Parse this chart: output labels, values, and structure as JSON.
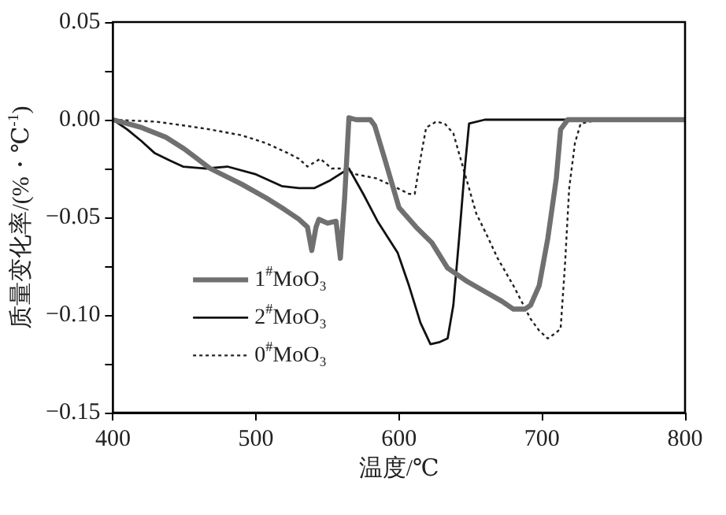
{
  "chart_data": {
    "type": "line",
    "xlabel": "温度/℃",
    "ylabel": "质量变化率/(%・℃$^{-1}$)",
    "xlim": [
      400,
      800
    ],
    "xticks": [
      400,
      500,
      600,
      700,
      800
    ],
    "ylim": [
      -0.15,
      0.05
    ],
    "yticks": [
      {
        "value": 0.05,
        "label": "0.05"
      },
      {
        "value": 0.025,
        "label": null
      },
      {
        "value": 0,
        "label": "0.00"
      },
      {
        "value": -0.025,
        "label": null
      },
      {
        "value": -0.05,
        "label": "−0.05"
      },
      {
        "value": -0.075,
        "label": null
      },
      {
        "value": -0.1,
        "label": "−0.10"
      },
      {
        "value": -0.125,
        "label": null
      },
      {
        "value": -0.15,
        "label": "−0.15"
      }
    ],
    "grid": false,
    "legend": "left",
    "marker": "none",
    "series": [
      {
        "name": "1$^{#}$MoO₃",
        "color": "#707070",
        "line_style": "solid",
        "x": [
          400,
          410,
          420,
          437,
          450,
          468,
          490,
          507,
          520,
          530,
          536,
          539,
          542,
          544,
          550,
          556,
          559,
          562,
          565,
          570,
          580,
          583,
          590,
          600,
          612,
          623,
          634,
          648,
          660,
          672,
          680,
          688,
          692,
          698,
          704,
          710,
          713,
          718,
          730,
          750,
          770,
          800
        ],
        "values": [
          0,
          -0.002,
          -0.004,
          -0.009,
          -0.015,
          -0.025,
          -0.033,
          -0.04,
          -0.046,
          -0.051,
          -0.055,
          -0.067,
          -0.055,
          -0.051,
          -0.053,
          -0.052,
          -0.071,
          -0.04,
          0.001,
          0,
          0,
          -0.003,
          -0.02,
          -0.045,
          -0.055,
          -0.063,
          -0.076,
          -0.083,
          -0.088,
          -0.093,
          -0.097,
          -0.097,
          -0.095,
          -0.085,
          -0.061,
          -0.03,
          -0.005,
          0,
          0,
          0,
          0,
          0
        ]
      },
      {
        "name": "2$^{#}$MoO₃",
        "color": "#111111",
        "line_style": "solid",
        "x": [
          400,
          410,
          420,
          429,
          440,
          449,
          465,
          480,
          500,
          518,
          530,
          541,
          552,
          565,
          575,
          585,
          599,
          607,
          615,
          622,
          628,
          634,
          638,
          642,
          646,
          649,
          660,
          700,
          750,
          800
        ],
        "values": [
          0,
          -0.005,
          -0.011,
          -0.017,
          -0.021,
          -0.024,
          -0.025,
          -0.024,
          -0.028,
          -0.034,
          -0.035,
          -0.035,
          -0.031,
          -0.025,
          -0.038,
          -0.052,
          -0.068,
          -0.085,
          -0.104,
          -0.115,
          -0.114,
          -0.112,
          -0.095,
          -0.061,
          -0.025,
          -0.002,
          0,
          0,
          0,
          0
        ]
      },
      {
        "name": "0$^{#}$MoO₃",
        "color": "#222222",
        "line_style": "dotted",
        "x": [
          400,
          430,
          450,
          468,
          490,
          507,
          522,
          530,
          536,
          545,
          553,
          561,
          570,
          584,
          596,
          607,
          611,
          615,
          619,
          626,
          632,
          638,
          645,
          654,
          662,
          669,
          680,
          692,
          698,
          704,
          710,
          713,
          716,
          719,
          723,
          727,
          740,
          770,
          800
        ],
        "values": [
          0,
          -0.001,
          -0.003,
          -0.005,
          -0.008,
          -0.012,
          -0.017,
          -0.02,
          -0.024,
          -0.02,
          -0.025,
          -0.025,
          -0.028,
          -0.03,
          -0.034,
          -0.038,
          -0.038,
          -0.02,
          -0.004,
          -0.001,
          -0.002,
          -0.007,
          -0.025,
          -0.048,
          -0.06,
          -0.071,
          -0.085,
          -0.102,
          -0.108,
          -0.112,
          -0.109,
          -0.107,
          -0.075,
          -0.035,
          -0.012,
          -0.002,
          0,
          0,
          0
        ]
      }
    ]
  }
}
